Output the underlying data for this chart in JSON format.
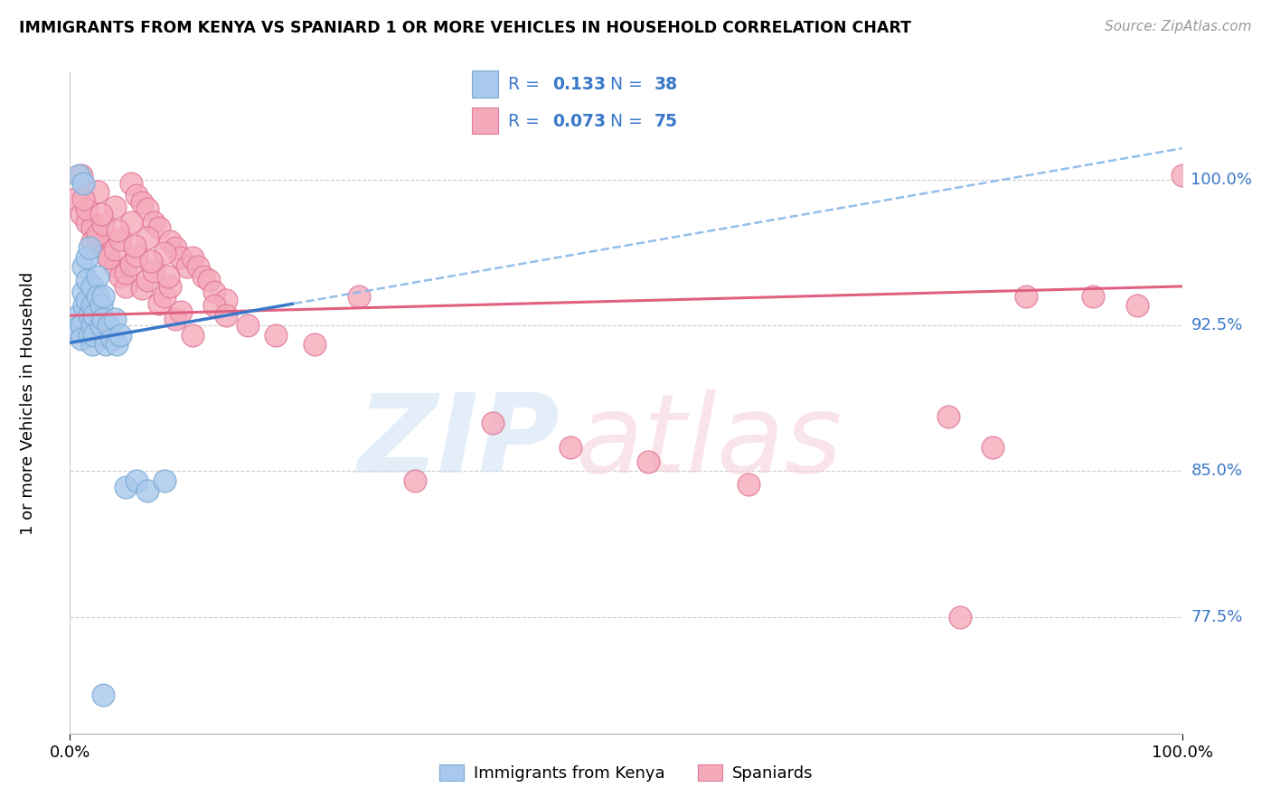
{
  "title": "IMMIGRANTS FROM KENYA VS SPANIARD 1 OR MORE VEHICLES IN HOUSEHOLD CORRELATION CHART",
  "source": "Source: ZipAtlas.com",
  "ylabel": "1 or more Vehicles in Household",
  "ytick_values": [
    0.775,
    0.85,
    0.925,
    1.0
  ],
  "ytick_labels": [
    "77.5%",
    "85.0%",
    "92.5%",
    "100.0%"
  ],
  "xlim": [
    0.0,
    1.0
  ],
  "ylim": [
    0.715,
    1.055
  ],
  "kenya_color": "#a8c8ec",
  "kenya_edge": "#7aaad4",
  "spain_color": "#f5aabb",
  "spain_edge": "#e07898",
  "kenya_line_color": "#3a78c9",
  "spain_line_color": "#e06080",
  "kenya_dash_color": "#88b8e8",
  "kenya_R": "0.133",
  "kenya_N": "38",
  "spain_R": "0.073",
  "spain_N": "75",
  "legend_label_kenya": "Immigrants from Kenya",
  "legend_label_spain": "Spaniards",
  "kenya_x": [
    0.005,
    0.008,
    0.01,
    0.01,
    0.012,
    0.012,
    0.013,
    0.015,
    0.015,
    0.015,
    0.018,
    0.018,
    0.02,
    0.02,
    0.02,
    0.02,
    0.022,
    0.022,
    0.025,
    0.025,
    0.028,
    0.028,
    0.03,
    0.03,
    0.032,
    0.035,
    0.038,
    0.04,
    0.042,
    0.045,
    0.05,
    0.06,
    0.07,
    0.085,
    0.03,
    0.008,
    0.012,
    0.018
  ],
  "kenya_y": [
    0.923,
    0.93,
    0.925,
    0.918,
    0.942,
    0.955,
    0.935,
    0.96,
    0.948,
    0.938,
    0.93,
    0.92,
    0.945,
    0.935,
    0.925,
    0.915,
    0.93,
    0.92,
    0.95,
    0.94,
    0.935,
    0.925,
    0.94,
    0.928,
    0.915,
    0.925,
    0.918,
    0.928,
    0.915,
    0.92,
    0.842,
    0.845,
    0.84,
    0.845,
    0.735,
    1.002,
    0.998,
    0.965
  ],
  "spain_x": [
    0.005,
    0.01,
    0.015,
    0.02,
    0.025,
    0.03,
    0.035,
    0.04,
    0.045,
    0.05,
    0.055,
    0.06,
    0.065,
    0.07,
    0.075,
    0.08,
    0.09,
    0.095,
    0.1,
    0.105,
    0.11,
    0.115,
    0.12,
    0.125,
    0.13,
    0.14,
    0.02,
    0.035,
    0.05,
    0.065,
    0.08,
    0.095,
    0.11,
    0.025,
    0.04,
    0.055,
    0.07,
    0.085,
    0.1,
    0.015,
    0.03,
    0.045,
    0.06,
    0.075,
    0.09,
    0.01,
    0.025,
    0.04,
    0.055,
    0.07,
    0.085,
    0.012,
    0.028,
    0.043,
    0.058,
    0.073,
    0.088,
    0.13,
    0.14,
    0.16,
    0.185,
    0.22,
    0.26,
    0.31,
    0.38,
    0.45,
    0.52,
    0.61,
    0.79,
    0.83,
    0.86,
    0.92,
    0.96,
    1.0,
    0.8
  ],
  "spain_y": [
    0.99,
    0.982,
    0.978,
    0.975,
    0.97,
    0.965,
    0.96,
    0.955,
    0.95,
    0.945,
    0.998,
    0.992,
    0.988,
    0.985,
    0.978,
    0.975,
    0.968,
    0.965,
    0.96,
    0.955,
    0.96,
    0.955,
    0.95,
    0.948,
    0.942,
    0.938,
    0.968,
    0.96,
    0.952,
    0.944,
    0.936,
    0.928,
    0.92,
    0.972,
    0.964,
    0.956,
    0.948,
    0.94,
    0.932,
    0.985,
    0.977,
    0.969,
    0.961,
    0.953,
    0.945,
    1.002,
    0.994,
    0.986,
    0.978,
    0.97,
    0.962,
    0.99,
    0.982,
    0.974,
    0.966,
    0.958,
    0.95,
    0.935,
    0.93,
    0.925,
    0.92,
    0.915,
    0.94,
    0.845,
    0.875,
    0.862,
    0.855,
    0.843,
    0.878,
    0.862,
    0.94,
    0.94,
    0.935,
    1.002,
    0.775
  ]
}
